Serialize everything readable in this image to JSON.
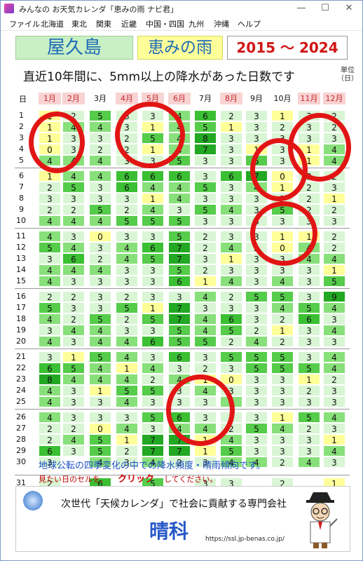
{
  "window": {
    "title": "みんなの お天気カレンダ「恵みの雨 ナビ君」",
    "minimize_glyph": "—",
    "maximize_glyph": "☐",
    "close_glyph": "✕"
  },
  "menu": [
    "ファイル",
    "北海道",
    "東北",
    "関東",
    "近畿",
    "中国・四国",
    "九州",
    "沖縄",
    "ヘルプ"
  ],
  "header": {
    "location": "屋久島",
    "subtitle": "恵みの雨",
    "years": "2015 ～ 2024",
    "heading": "直近10年間に、5mm以上の降水があった日数です",
    "unit": "単位\n（日）"
  },
  "grid": {
    "day_header": "日",
    "months": [
      "1月",
      "2月",
      "3月",
      "4月",
      "5月",
      "6月",
      "7月",
      "8月",
      "9月",
      "10月",
      "11月",
      "12月"
    ],
    "days": [
      "1",
      "2",
      "3",
      "4",
      "5",
      "6",
      "7",
      "8",
      "9",
      "10",
      "11",
      "12",
      "13",
      "14",
      "15",
      "16",
      "17",
      "18",
      "19",
      "20",
      "21",
      "22",
      "23",
      "24",
      "25",
      "26",
      "27",
      "28",
      "29",
      "30",
      "31"
    ],
    "values": [
      [
        1,
        2,
        5,
        3,
        3,
        4,
        6,
        2,
        3,
        1,
        3,
        2
      ],
      [
        1,
        4,
        4,
        3,
        1,
        4,
        5,
        1,
        3,
        2,
        3,
        2
      ],
      [
        1,
        3,
        3,
        2,
        5,
        4,
        8,
        3,
        3,
        3,
        3,
        3
      ],
      [
        0,
        3,
        2,
        2,
        1,
        4,
        7,
        3,
        1,
        3,
        1,
        4
      ],
      [
        4,
        4,
        4,
        3,
        3,
        5,
        3,
        3,
        5,
        3,
        1,
        4
      ],
      [
        1,
        4,
        4,
        6,
        6,
        6,
        3,
        6,
        7,
        0,
        2,
        2
      ],
      [
        2,
        5,
        3,
        6,
        4,
        4,
        5,
        3,
        4,
        1,
        2,
        3
      ],
      [
        3,
        3,
        3,
        3,
        1,
        4,
        3,
        3,
        3,
        2,
        2,
        1
      ],
      [
        2,
        2,
        5,
        2,
        4,
        3,
        5,
        4,
        3,
        5,
        2,
        2
      ],
      [
        4,
        4,
        4,
        5,
        5,
        5,
        3,
        3,
        3,
        3,
        3,
        3
      ],
      [
        4,
        3,
        0,
        3,
        3,
        5,
        2,
        3,
        3,
        1,
        1,
        2
      ],
      [
        5,
        4,
        3,
        4,
        6,
        7,
        2,
        4,
        2,
        0,
        4,
        2
      ],
      [
        3,
        6,
        2,
        4,
        5,
        7,
        3,
        1,
        3,
        3,
        4,
        4
      ],
      [
        4,
        4,
        4,
        3,
        3,
        5,
        2,
        3,
        3,
        3,
        3,
        1
      ],
      [
        4,
        3,
        3,
        3,
        3,
        6,
        1,
        4,
        3,
        4,
        3,
        5
      ],
      [
        2,
        2,
        3,
        2,
        3,
        3,
        4,
        2,
        5,
        5,
        3,
        9
      ],
      [
        5,
        3,
        3,
        5,
        1,
        7,
        3,
        3,
        3,
        4,
        5,
        4
      ],
      [
        4,
        2,
        5,
        2,
        5,
        7,
        4,
        6,
        3,
        2,
        6,
        3
      ],
      [
        3,
        4,
        4,
        3,
        3,
        5,
        4,
        5,
        2,
        1,
        3,
        4
      ],
      [
        4,
        3,
        4,
        4,
        6,
        5,
        5,
        2,
        4,
        2,
        3,
        3
      ],
      [
        3,
        1,
        5,
        4,
        3,
        6,
        3,
        5,
        5,
        5,
        3,
        4
      ],
      [
        6,
        5,
        4,
        1,
        4,
        3,
        2,
        3,
        5,
        5,
        5,
        4
      ],
      [
        8,
        4,
        4,
        4,
        2,
        4,
        1,
        0,
        3,
        3,
        1,
        2
      ],
      [
        4,
        3,
        1,
        5,
        5,
        3,
        4,
        3,
        3,
        3,
        2,
        3
      ],
      [
        4,
        3,
        3,
        4,
        3,
        3,
        3,
        4,
        3,
        3,
        3,
        3
      ],
      [
        4,
        3,
        3,
        3,
        5,
        6,
        3,
        3,
        3,
        1,
        5,
        4
      ],
      [
        2,
        2,
        0,
        4,
        3,
        4,
        4,
        2,
        5,
        4,
        2,
        3
      ],
      [
        2,
        4,
        5,
        1,
        7,
        7,
        1,
        4,
        3,
        3,
        3,
        1
      ],
      [
        6,
        3,
        5,
        2,
        7,
        7,
        1,
        5,
        3,
        3,
        3,
        4
      ],
      [
        3,
        null,
        4,
        3,
        4,
        2,
        3,
        4,
        4,
        2,
        4,
        3
      ],
      [
        2,
        null,
        6,
        null,
        5,
        null,
        3,
        3,
        null,
        2,
        null,
        1
      ]
    ]
  },
  "colors": {
    "accent_red": "#e21515",
    "header_green": "#c9f0c4",
    "month_pink": "#f8d3d3",
    "month_pink_text": "#c62828",
    "yellow_box": "#ffff99"
  },
  "footer": {
    "line1": "地球公転の四季変化の中での降水頻度・晴雨傾向です。",
    "line2_pre": "見たい日のセルを、",
    "line2_click": "クリック",
    "line2_post": "してください。"
  },
  "ad": {
    "tagline": "次世代「天候カレンダ」で社会に貢献する専門会社",
    "brand": "晴科",
    "url": "https://ssl.jp-benas.co.jp/"
  }
}
